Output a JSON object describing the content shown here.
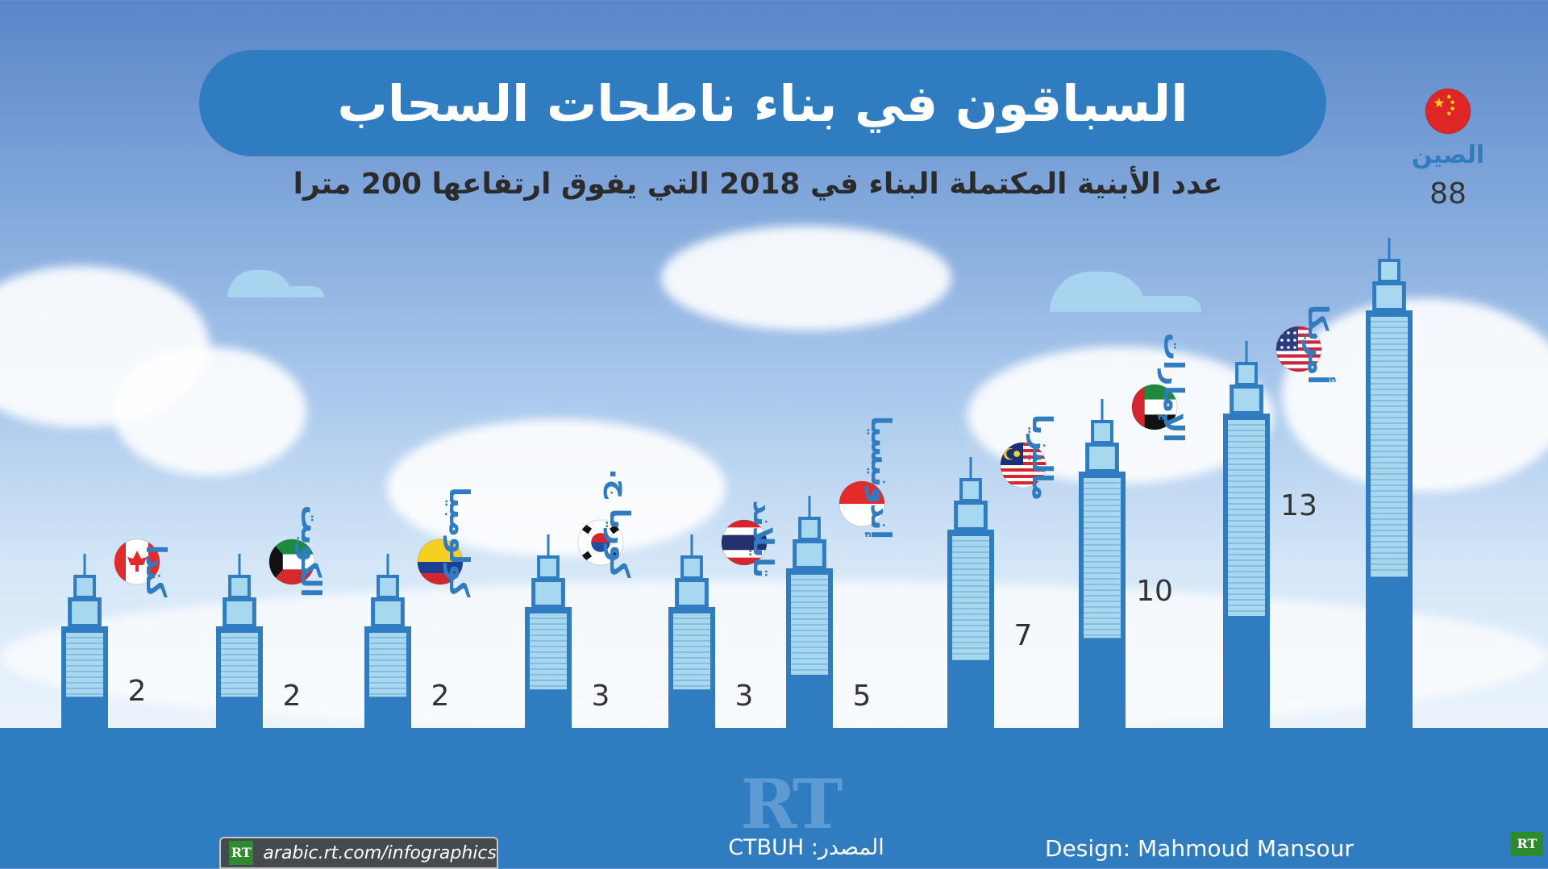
{
  "title": "السباقون في بناء ناطحات السحاب",
  "subtitle": "عدد الأبنية المكتملة البناء في 2018 التي يفوق ارتفاعها 200 مترا",
  "footer": {
    "url": "arabic.rt.com/infographics",
    "source": "المصدر: CTBUH",
    "design": "Design: Mahmoud Mansour",
    "rt_watermark": "RT",
    "rt_logo": "RT"
  },
  "colors": {
    "accent": "#2f7dc0",
    "building": "#2f7dc0",
    "window": "#a8d8f0",
    "number_text": "#333333"
  },
  "chart_data": {
    "type": "bar",
    "title": "عدد الأبنية المكتملة البناء في 2018 التي يفوق ارتفاعها 200 مترا",
    "categories": [
      "كندا",
      "الكويت",
      "كولومبيا",
      "كوريا ج.",
      "تايلاند",
      "إندونيسيا",
      "ماليزيا",
      "الإمارات",
      "أمريكا",
      "الصين"
    ],
    "values": [
      2,
      2,
      2,
      3,
      3,
      5,
      7,
      10,
      13,
      88
    ],
    "flags": [
      "canada-flag",
      "kuwait-flag",
      "colombia-flag",
      "south-korea-flag",
      "thailand-flag",
      "indonesia-flag",
      "malaysia-flag",
      "uae-flag",
      "usa-flag",
      "china-flag"
    ],
    "xlabel": "",
    "ylabel": "",
    "grid": false,
    "legend": "none"
  }
}
